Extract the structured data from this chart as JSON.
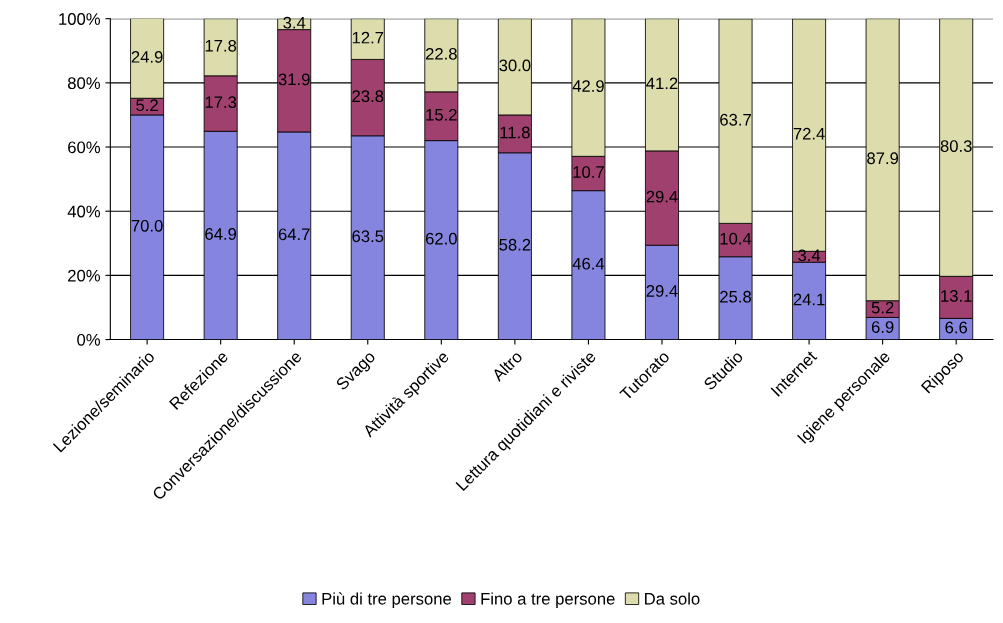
{
  "chart_data": {
    "type": "bar",
    "stacked": true,
    "categories": [
      "Lezione/seminario",
      "Refezione",
      "Conversazione/discussione",
      "Svago",
      "Attività sportive",
      "Altro",
      "Lettura quotidiani e riviste",
      "Tutorato",
      "Studio",
      "Internet",
      "Igiene personale",
      "Riposo"
    ],
    "series": [
      {
        "name": "Più di tre persone",
        "color": "#8585e0",
        "values": [
          70.0,
          64.9,
          64.7,
          63.5,
          62.0,
          58.2,
          46.4,
          29.4,
          25.8,
          24.1,
          6.9,
          6.6
        ],
        "value_labels": [
          "70.0",
          "64.9",
          "64.7",
          "63.5",
          "62.0",
          "58.2",
          "46.4",
          "29.4",
          "25.8",
          "24.1",
          "6.9",
          "6.6"
        ]
      },
      {
        "name": "Fino a tre persone",
        "color": "#a0406e",
        "values": [
          5.2,
          17.3,
          31.9,
          23.8,
          15.2,
          11.8,
          10.7,
          29.4,
          10.4,
          3.4,
          5.2,
          13.1
        ],
        "value_labels": [
          "5.2",
          "17.3",
          "31.9",
          "23.8",
          "15.2",
          "11.8",
          "10.7",
          "29.4",
          "10.4",
          "3.4",
          "5.2",
          "13.1"
        ]
      },
      {
        "name": "Da solo",
        "color": "#dcdcac",
        "values": [
          24.9,
          17.8,
          3.4,
          12.7,
          22.8,
          30.0,
          42.9,
          41.2,
          63.7,
          72.4,
          87.9,
          80.3
        ],
        "value_labels": [
          "24.9",
          "17.8",
          "3.4",
          "12.7",
          "22.8",
          "30.0",
          "42.9",
          "41.2",
          "63.7",
          "72.4",
          "87.9",
          "80.3"
        ]
      }
    ],
    "ylim": [
      0,
      100
    ],
    "yticks": [
      {
        "value": 0,
        "label": "0%"
      },
      {
        "value": 20,
        "label": "20%"
      },
      {
        "value": 40,
        "label": "40%"
      },
      {
        "value": 60,
        "label": "60%"
      },
      {
        "value": 80,
        "label": "80%"
      },
      {
        "value": 100,
        "label": "100%"
      }
    ],
    "grid": "y",
    "legend": "bottom"
  }
}
